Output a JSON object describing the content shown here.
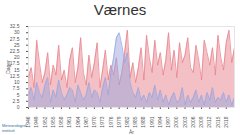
{
  "chart_data": {
    "type": "area",
    "title": "Værnes",
    "x_label": "År",
    "y_label": "Dager",
    "caption": "Meteorologisk institutt",
    "x": [
      1946,
      1947,
      1948,
      1949,
      1950,
      1951,
      1952,
      1953,
      1954,
      1955,
      1956,
      1957,
      1958,
      1959,
      1960,
      1961,
      1962,
      1963,
      1964,
      1965,
      1966,
      1967,
      1968,
      1969,
      1970,
      1971,
      1972,
      1973,
      1974,
      1975,
      1976,
      1977,
      1978,
      1979,
      1980,
      1981,
      1982,
      1983,
      1984,
      1985,
      1986,
      1987,
      1988,
      1989,
      1990,
      1991,
      1992,
      1993,
      1994,
      1995,
      1996,
      1997,
      1998,
      1999,
      2000,
      2001,
      2002,
      2003,
      2004,
      2005,
      2006,
      2007,
      2008,
      2009,
      2010,
      2011,
      2012,
      2013,
      2014,
      2015,
      2016,
      2017,
      2018,
      2019,
      2020,
      2021
    ],
    "series": [
      {
        "color": "#e8828c",
        "values": [
          12,
          16,
          8,
          27,
          18,
          10,
          14,
          22,
          9,
          17,
          13,
          25,
          11,
          15,
          8,
          19,
          24,
          10,
          16,
          28,
          14,
          9,
          21,
          12,
          18,
          26,
          8,
          15,
          23,
          11,
          17,
          13,
          20,
          9,
          14,
          22,
          31,
          12,
          18,
          10,
          16,
          24,
          11,
          29,
          20,
          14,
          27,
          17,
          22,
          13,
          19,
          30,
          15,
          23,
          12,
          26,
          18,
          21,
          28,
          16,
          14,
          25,
          19,
          11,
          27,
          22,
          17,
          24,
          13,
          29,
          20,
          15,
          26,
          31,
          18,
          24
        ]
      },
      {
        "color": "#9aa6e0",
        "values": [
          5,
          8,
          3,
          10,
          6,
          4,
          9,
          12,
          2,
          7,
          4,
          11,
          6,
          3,
          5,
          8,
          7,
          2,
          9,
          6,
          3,
          5,
          10,
          4,
          7,
          6,
          2,
          8,
          12,
          5,
          14,
          20,
          28,
          30,
          25,
          18,
          22,
          10,
          6,
          4,
          8,
          3,
          5,
          2,
          6,
          4,
          9,
          3,
          7,
          2,
          5,
          1,
          4,
          6,
          2,
          3,
          8,
          1,
          5,
          2,
          4,
          7,
          2,
          5,
          1,
          6,
          3,
          8,
          2,
          4,
          3,
          6,
          2,
          5,
          1,
          4
        ]
      }
    ],
    "xlim": [
      1946,
      2021
    ],
    "xticks": [
      1946,
      1949,
      1952,
      1955,
      1958,
      1961,
      1964,
      1967,
      1970,
      1973,
      1976,
      1979,
      1982,
      1985,
      1988,
      1991,
      1994,
      1997,
      2000,
      2003,
      2006,
      2009,
      2012,
      2015,
      2018
    ],
    "ylim": [
      0,
      32.5
    ],
    "yticks": [
      0,
      2.5,
      5,
      7.5,
      10,
      12.5,
      15,
      17.5,
      20,
      22.5,
      25,
      27.5,
      30,
      32.5
    ]
  }
}
